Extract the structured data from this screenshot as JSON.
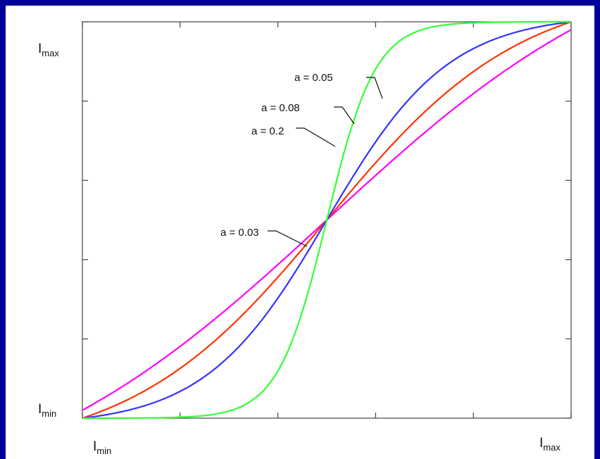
{
  "chart_data": {
    "type": "line",
    "title": "",
    "xlabel": "",
    "ylabel": "",
    "xlim": [
      0,
      1
    ],
    "ylim": [
      0,
      1
    ],
    "grid": false,
    "x_tick_labels": [
      {
        "main": "I",
        "sub": "min"
      },
      {
        "main": "I",
        "sub": "max"
      }
    ],
    "y_tick_labels": [
      {
        "main": "I",
        "sub": "min"
      },
      {
        "main": "I",
        "sub": "max"
      }
    ],
    "series": [
      {
        "name": "a = 0.03",
        "color": "#ff00ff",
        "a": 0.03,
        "x": [
          0,
          0.1,
          0.2,
          0.3,
          0.4,
          0.5,
          0.6,
          0.7,
          0.8,
          0.9,
          1.0
        ],
        "y": [
          0.02,
          0.05,
          0.11,
          0.21,
          0.35,
          0.5,
          0.65,
          0.79,
          0.89,
          0.95,
          0.98
        ]
      },
      {
        "name": "a = 0.05",
        "color": "#ff3300",
        "a": 0.05,
        "x": [
          0,
          0.1,
          0.2,
          0.3,
          0.4,
          0.5,
          0.6,
          0.7,
          0.8,
          0.9,
          1.0
        ],
        "y": [
          0.0,
          0.01,
          0.03,
          0.09,
          0.26,
          0.5,
          0.74,
          0.91,
          0.97,
          0.99,
          1.0
        ]
      },
      {
        "name": "a = 0.08",
        "color": "#3333ff",
        "a": 0.08,
        "x": [
          0,
          0.1,
          0.2,
          0.3,
          0.4,
          0.5,
          0.6,
          0.7,
          0.8,
          0.9,
          1.0
        ],
        "y": [
          0.0,
          0.0,
          0.0,
          0.04,
          0.16,
          0.5,
          0.84,
          0.96,
          1.0,
          1.0,
          1.0
        ]
      },
      {
        "name": "a = 0.2",
        "color": "#33ff33",
        "a": 0.2,
        "x": [
          0,
          0.1,
          0.2,
          0.3,
          0.4,
          0.5,
          0.6,
          0.7,
          0.8,
          0.9,
          1.0
        ],
        "y": [
          0.0,
          0.0,
          0.0,
          0.0,
          0.02,
          0.5,
          0.98,
          1.0,
          1.0,
          1.0,
          1.0
        ]
      }
    ],
    "annotations": [
      {
        "text": "a = 0.05",
        "series": "a = 0.05"
      },
      {
        "text": "a = 0.08",
        "series": "a = 0.08"
      },
      {
        "text": "a = 0.2",
        "series": "a = 0.2"
      },
      {
        "text": "a = 0.03",
        "series": "a = 0.03"
      }
    ]
  }
}
